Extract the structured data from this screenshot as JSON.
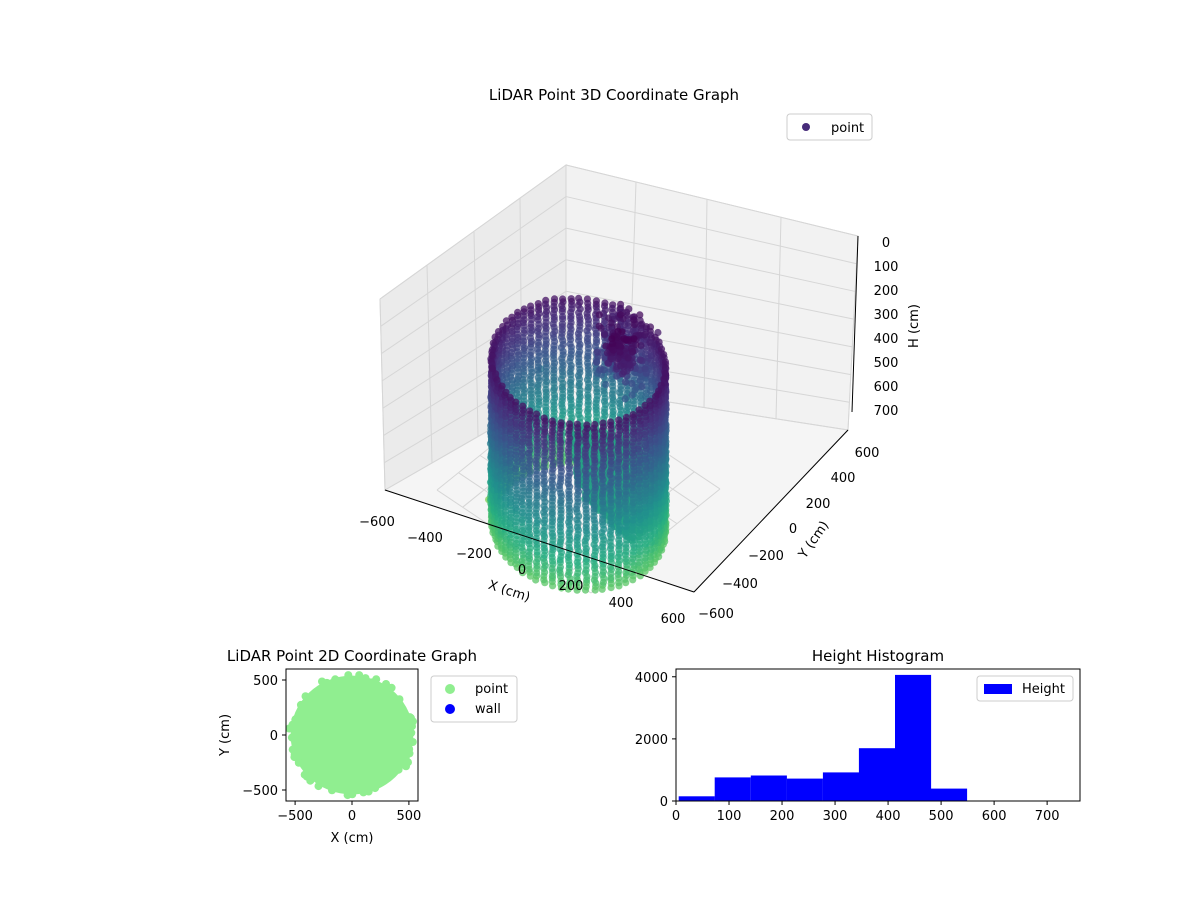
{
  "chart_data": [
    {
      "type": "scatter",
      "projection": "3d",
      "title": "LiDAR Point 3D Coordinate Graph",
      "xlabel": "X (cm)",
      "ylabel": "Y (cm)",
      "zlabel": "H (cm)",
      "xlim": [
        -600,
        600
      ],
      "ylim": [
        -600,
        600
      ],
      "zlim": [
        0,
        750
      ],
      "z_inverted": true,
      "xticks": [
        "−600",
        "−400",
        "−200",
        "0",
        "200",
        "400",
        "600"
      ],
      "yticks": [
        "−600",
        "−400",
        "−200",
        "0",
        "200",
        "400",
        "600"
      ],
      "zticks": [
        "0",
        "100",
        "200",
        "300",
        "400",
        "500",
        "600",
        "700"
      ],
      "colormap": "viridis",
      "legend": [
        {
          "label": "point",
          "color": "#472c7a"
        }
      ],
      "legend_position": "upper-right",
      "structure": {
        "wall_radius": 520,
        "wall_height_range": [
          0,
          560
        ],
        "floor_height": 440
      }
    },
    {
      "type": "scatter",
      "title": "LiDAR Point 2D Coordinate Graph",
      "xlabel": "X (cm)",
      "ylabel": "Y (cm)",
      "xlim": [
        -580,
        580
      ],
      "ylim": [
        -600,
        600
      ],
      "xticks": [
        "−500",
        "0",
        "500"
      ],
      "yticks": [
        "−500",
        "0",
        "500"
      ],
      "legend": [
        {
          "label": "point",
          "color": "#90ee90"
        },
        {
          "label": "wall",
          "color": "#0000ff"
        }
      ],
      "legend_position": "outside-right",
      "region": {
        "center": [
          0,
          0
        ],
        "radius": 540
      }
    },
    {
      "type": "bar",
      "histogram": true,
      "title": "Height Histogram",
      "xlabel": "",
      "ylabel": "",
      "xlim": [
        0,
        762
      ],
      "ylim": [
        0,
        4250
      ],
      "xticks": [
        "0",
        "100",
        "200",
        "300",
        "400",
        "500",
        "600",
        "700"
      ],
      "yticks": [
        "0",
        "2000",
        "4000"
      ],
      "color": "#0000ff",
      "legend": [
        {
          "label": "Height",
          "color": "#0000ff"
        }
      ],
      "legend_position": "upper-right",
      "bins": [
        {
          "start": 5,
          "end": 73,
          "value": 150
        },
        {
          "start": 73,
          "end": 141,
          "value": 760
        },
        {
          "start": 141,
          "end": 209,
          "value": 820
        },
        {
          "start": 209,
          "end": 277,
          "value": 720
        },
        {
          "start": 277,
          "end": 345,
          "value": 920
        },
        {
          "start": 345,
          "end": 413,
          "value": 1700
        },
        {
          "start": 413,
          "end": 481,
          "value": 4060
        },
        {
          "start": 481,
          "end": 549,
          "value": 400
        },
        {
          "start": 549,
          "end": 617,
          "value": 0
        },
        {
          "start": 617,
          "end": 685,
          "value": 0
        },
        {
          "start": 685,
          "end": 753,
          "value": 0
        }
      ]
    }
  ]
}
